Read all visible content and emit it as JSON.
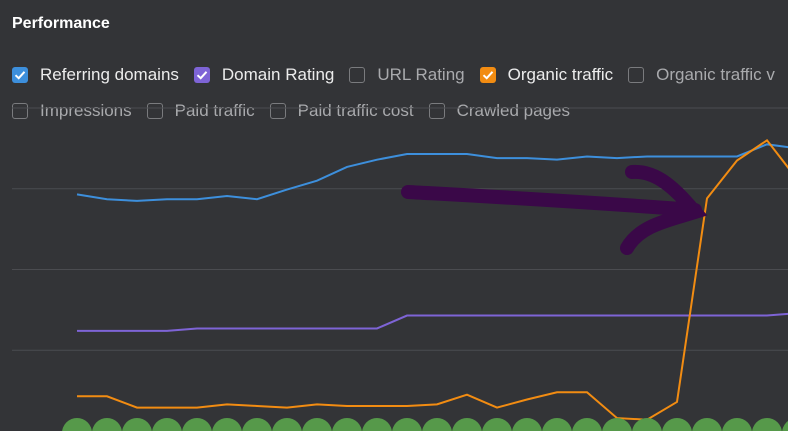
{
  "header": {
    "title": "Performance"
  },
  "filters": [
    [
      {
        "label": "Referring domains",
        "checked": true,
        "color": "#3d8fdc"
      },
      {
        "label": "Domain Rating",
        "checked": true,
        "color": "#7e64d6"
      },
      {
        "label": "URL Rating",
        "checked": false
      },
      {
        "label": "Organic traffic",
        "checked": true,
        "color": "#f28c12"
      },
      {
        "label": "Organic traffic v",
        "checked": false
      }
    ],
    [
      {
        "label": "Impressions",
        "checked": false
      },
      {
        "label": "Paid traffic",
        "checked": false
      },
      {
        "label": "Paid traffic cost",
        "checked": false
      },
      {
        "label": "Crawled pages",
        "checked": false
      }
    ]
  ],
  "chart_data": {
    "type": "line",
    "categories": [
      null,
      null,
      null,
      null,
      null,
      null,
      null,
      null,
      null,
      null,
      null,
      null,
      null,
      null,
      null,
      null,
      null,
      null,
      null,
      null,
      null,
      null,
      null,
      null,
      null
    ],
    "ylim": [
      0,
      4
    ],
    "yticks": [
      1,
      2,
      3,
      4
    ],
    "grid": true,
    "series": [
      {
        "color": "#3d8fdc",
        "values": [
          2.93,
          2.87,
          2.85,
          2.87,
          2.87,
          2.91,
          2.87,
          2.99,
          3.1,
          3.27,
          3.36,
          3.43,
          3.43,
          3.43,
          3.38,
          3.38,
          3.36,
          3.4,
          3.38,
          3.4,
          3.4,
          3.4,
          3.4,
          3.55,
          3.5
        ]
      },
      {
        "color": "#7e64d6",
        "values": [
          1.24,
          1.24,
          1.24,
          1.24,
          1.27,
          1.27,
          1.27,
          1.27,
          1.27,
          1.27,
          1.27,
          1.43,
          1.43,
          1.43,
          1.43,
          1.43,
          1.43,
          1.43,
          1.43,
          1.43,
          1.43,
          1.43,
          1.43,
          1.43,
          1.46
        ]
      },
      {
        "color": "#f28c12",
        "values": [
          0.43,
          0.43,
          0.29,
          0.29,
          0.29,
          0.33,
          0.31,
          0.29,
          0.33,
          0.31,
          0.31,
          0.31,
          0.33,
          0.45,
          0.29,
          0.39,
          0.48,
          0.48,
          0.16,
          0.14,
          0.36,
          2.88,
          3.35,
          3.6,
          3.12
        ]
      }
    ]
  }
}
